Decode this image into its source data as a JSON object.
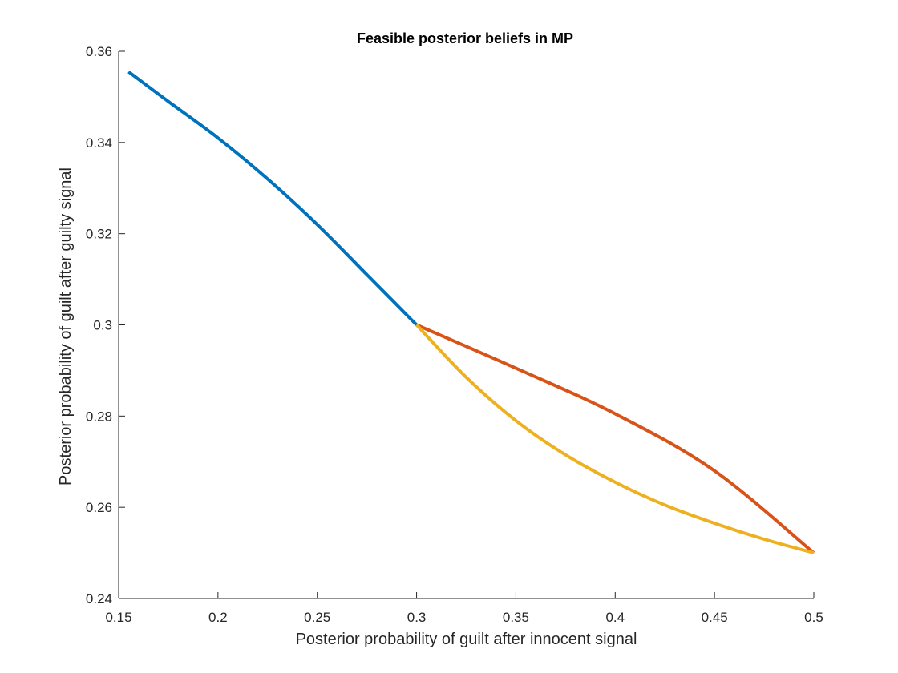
{
  "chart_data": {
    "type": "line",
    "title": "Feasible posterior beliefs in MP",
    "xlabel": "Posterior probability of guilt after innocent signal",
    "ylabel": "Posterior probability of guilt after guilty signal",
    "xlim": [
      0.15,
      0.5
    ],
    "ylim": [
      0.24,
      0.36
    ],
    "xticks": [
      0.15,
      0.2,
      0.25,
      0.3,
      0.35,
      0.4,
      0.45,
      0.5
    ],
    "yticks": [
      0.24,
      0.26,
      0.28,
      0.3,
      0.32,
      0.34,
      0.36
    ],
    "xtick_labels": [
      "0.15",
      "0.2",
      "0.25",
      "0.3",
      "0.35",
      "0.4",
      "0.45",
      "0.5"
    ],
    "ytick_labels": [
      "0.24",
      "0.26",
      "0.28",
      "0.3",
      "0.32",
      "0.34",
      "0.36"
    ],
    "grid": false,
    "box": "open",
    "series": [
      {
        "color": "#0072BD",
        "x": [
          0.155,
          0.175,
          0.2,
          0.225,
          0.25,
          0.275,
          0.3
        ],
        "y": [
          0.3555,
          0.349,
          0.341,
          0.332,
          0.322,
          0.311,
          0.3
        ]
      },
      {
        "color": "#D95319",
        "x": [
          0.3,
          0.35,
          0.4,
          0.45,
          0.5
        ],
        "y": [
          0.3,
          0.2905,
          0.2805,
          0.268,
          0.25
        ]
      },
      {
        "color": "#EDB120",
        "x": [
          0.3,
          0.325,
          0.35,
          0.375,
          0.4,
          0.425,
          0.45,
          0.475,
          0.5
        ],
        "y": [
          0.3,
          0.2885,
          0.279,
          0.2715,
          0.2655,
          0.2605,
          0.2565,
          0.253,
          0.25
        ]
      }
    ]
  }
}
